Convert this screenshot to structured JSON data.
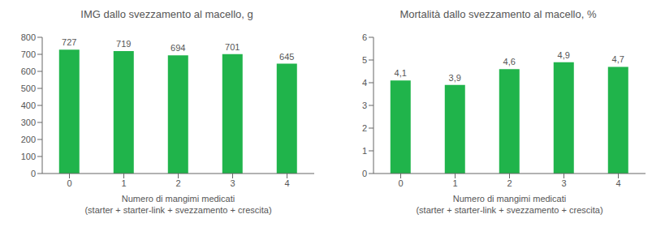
{
  "chart_data": [
    {
      "type": "bar",
      "title": "IMG dallo svezzamento al macello, g",
      "x_label": "Numero di mangimi medicati\n(starter + starter-link + svezzamento + crescita)",
      "categories": [
        0,
        1,
        2,
        3,
        4
      ],
      "values": [
        727,
        719,
        694,
        701,
        645
      ],
      "color": "#20b44b",
      "ylim": [
        0,
        800
      ],
      "yticks": [
        0,
        100,
        200,
        300,
        400,
        500,
        600,
        700,
        800
      ],
      "grid": false,
      "data_labels": true
    },
    {
      "type": "bar",
      "title": "Mortalità dallo svezzamento al macello, %",
      "x_label": "Numero di mangimi medicati\n(starter + starter-link + svezzamento + crescita)",
      "categories": [
        0,
        1,
        2,
        3,
        4
      ],
      "values": [
        4.1,
        3.9,
        4.6,
        4.9,
        4.7
      ],
      "value_labels": [
        "4,1",
        "3,9",
        "4,6",
        "4,9",
        "4,7"
      ],
      "color": "#20b44b",
      "ylim": [
        0,
        6
      ],
      "yticks": [
        0,
        1,
        2,
        3,
        4,
        5,
        6
      ],
      "grid": false,
      "data_labels": true
    }
  ]
}
